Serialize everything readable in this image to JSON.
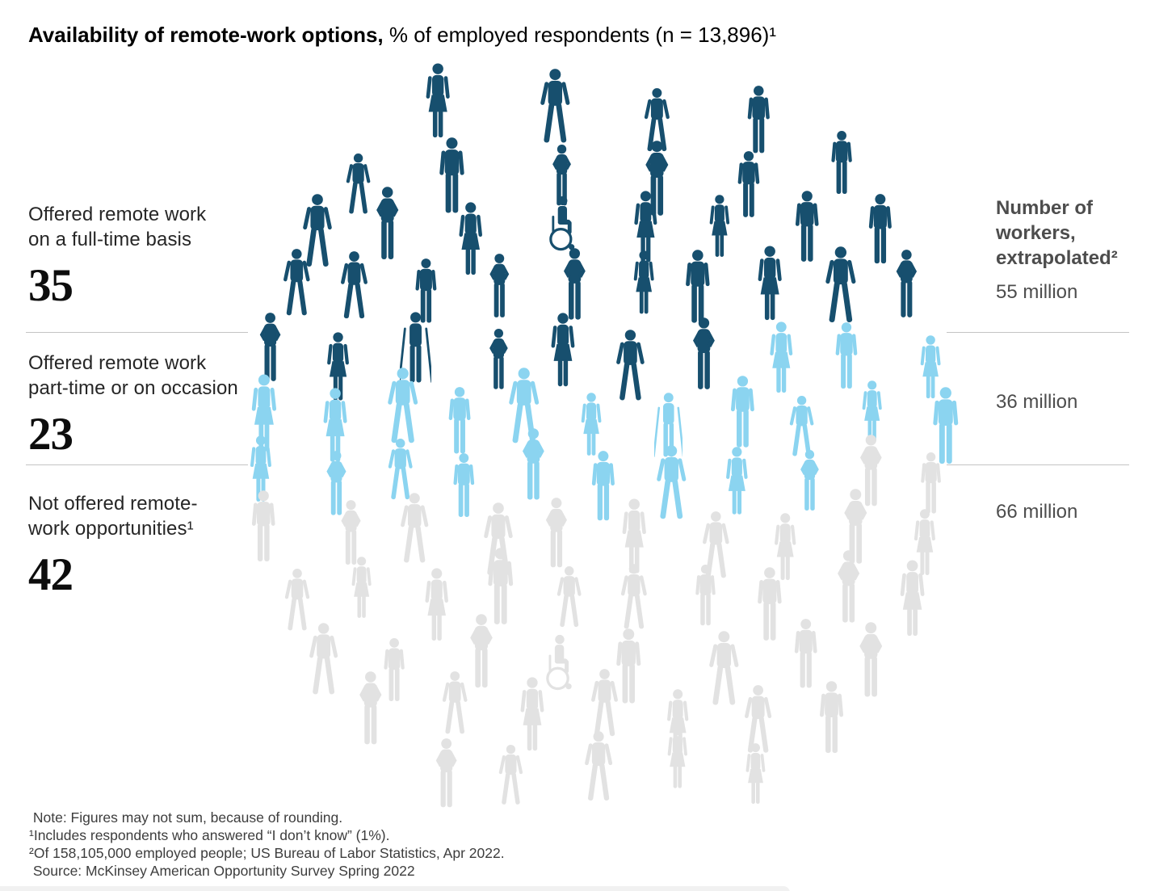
{
  "title": {
    "bold": "Availability of remote-work options,",
    "regular": " % of employed respondents (n = 13,896)¹"
  },
  "categories": [
    {
      "label_lines": [
        "Offered remote work",
        "on a full-time basis"
      ],
      "value": "35",
      "workers": "55 million"
    },
    {
      "label_lines": [
        "Offered remote work",
        "part-time or on occasion"
      ],
      "value": "23",
      "workers": "36 million"
    },
    {
      "label_lines": [
        "Not offered remote-",
        "work opportunities¹"
      ],
      "value": "42",
      "workers": "66 million"
    }
  ],
  "right_header_lines": [
    "Number of",
    "workers,",
    "extrapolated²"
  ],
  "footnotes": [
    " Note: Figures may not sum, because of rounding.",
    "¹Includes respondents who answered “I don’t know” (1%).",
    "²Of 158,105,000 employed people; US Bureau of Labor Statistics, Apr 2022.",
    " Source: McKinsey American Opportunity Survey Spring 2022"
  ],
  "chart_data": {
    "type": "pictogram",
    "title": "Availability of remote-work options",
    "subtitle": "% of employed respondents (n = 13,896)",
    "n_respondents": 13896,
    "unit_per_icon_pct": 1,
    "total_icons": 100,
    "series": [
      {
        "name": "Offered remote work on a full-time basis",
        "value": 35,
        "workers_extrapolated": "55 million",
        "color": "#174f6e"
      },
      {
        "name": "Offered remote work part-time or on occasion",
        "value": 23,
        "workers_extrapolated": "36 million",
        "color": "#8bd4f0"
      },
      {
        "name": "Not offered remote-work opportunities",
        "value": 42,
        "workers_extrapolated": "66 million",
        "color": "#e2e2e2"
      }
    ],
    "icon_variants": [
      "standing-man",
      "standing-woman",
      "hands-on-hips",
      "walking"
    ],
    "accessibility_icons": {
      "13": "wheelchair-user",
      "30": "crutches-user",
      "44": "crutches-user",
      "83": "wheelchair-user"
    },
    "layout": {
      "shape": "circle-cluster",
      "center": [
        742,
        545
      ],
      "radius": [
        420,
        460
      ],
      "rows": [
        {
          "y": 140,
          "count": 4
        },
        {
          "y": 215,
          "count": 6
        },
        {
          "y": 290,
          "count": 8
        },
        {
          "y": 365,
          "count": 10
        },
        {
          "y": 440,
          "count": 10
        },
        {
          "y": 515,
          "count": 11
        },
        {
          "y": 590,
          "count": 11
        },
        {
          "y": 665,
          "count": 10
        },
        {
          "y": 740,
          "count": 10
        },
        {
          "y": 815,
          "count": 8
        },
        {
          "y": 885,
          "count": 7
        },
        {
          "y": 950,
          "count": 5
        }
      ]
    }
  }
}
